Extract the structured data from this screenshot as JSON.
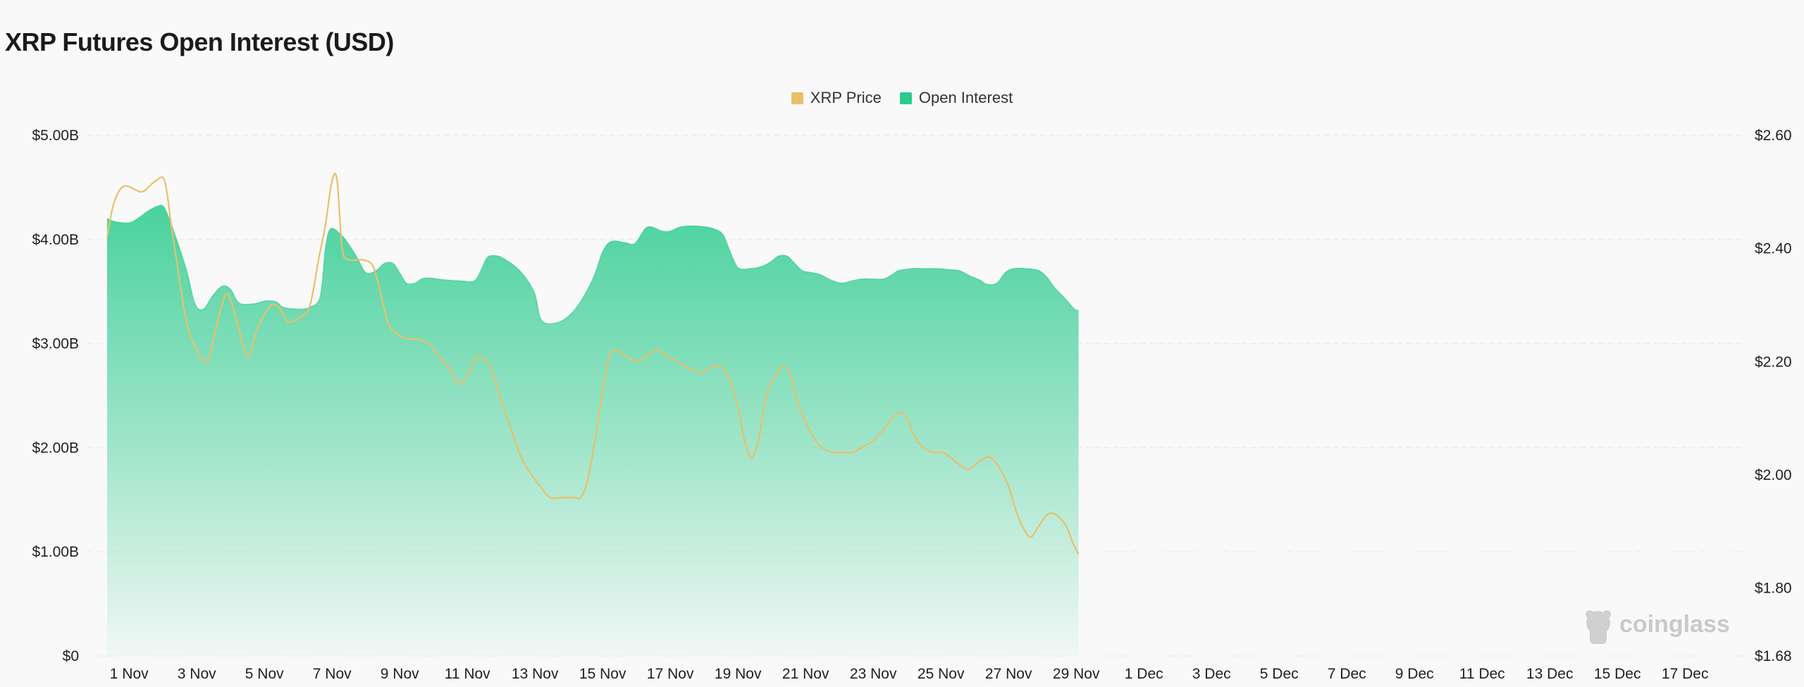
{
  "page": {
    "title": "XRP Futures Open Interest (USD)",
    "watermark": "coinglass"
  },
  "colors": {
    "price_line": "#E8C069",
    "oi_fill": "#2BCB8E",
    "grid": "#E8E8E8",
    "background": "#F9F9F9"
  },
  "chart_data": {
    "type": "area",
    "title": "XRP Futures Open Interest (USD)",
    "legend": {
      "position": "top-center",
      "items": [
        {
          "label": "XRP Price",
          "color": "#E8C069"
        },
        {
          "label": "Open Interest",
          "color": "#2BCB8E"
        }
      ]
    },
    "x_tick_labels": [
      "1 Nov",
      "3 Nov",
      "5 Nov",
      "7 Nov",
      "9 Nov",
      "11 Nov",
      "13 Nov",
      "15 Nov",
      "17 Nov",
      "19 Nov",
      "21 Nov",
      "23 Nov",
      "25 Nov",
      "27 Nov",
      "29 Nov",
      "1 Dec",
      "3 Dec",
      "5 Dec",
      "7 Dec",
      "9 Dec",
      "11 Dec",
      "13 Dec",
      "15 Dec",
      "17 Dec"
    ],
    "y_left": {
      "ylim": [
        0,
        5000000000
      ],
      "tick_labels": [
        "$0",
        "$1.00B",
        "$2.00B",
        "$3.00B",
        "$4.00B",
        "$5.00B"
      ]
    },
    "y_right": {
      "ylim": [
        1.68,
        2.6
      ],
      "tick_labels": [
        "$1.68",
        "$1.80",
        "$2.00",
        "$2.20",
        "$2.40",
        "$2.60"
      ]
    },
    "grid": true,
    "series": [
      {
        "name": "Open Interest",
        "type": "area",
        "axis": "left",
        "values": [
          [
            0.0,
            4.2
          ],
          [
            0.25,
            4.17
          ],
          [
            0.65,
            4.16
          ],
          [
            0.9,
            4.2
          ],
          [
            1.2,
            4.27
          ],
          [
            1.5,
            4.32
          ],
          [
            1.7,
            4.3
          ],
          [
            2.0,
            4.05
          ],
          [
            2.35,
            3.7
          ],
          [
            2.6,
            3.38
          ],
          [
            2.85,
            3.33
          ],
          [
            3.1,
            3.45
          ],
          [
            3.4,
            3.55
          ],
          [
            3.65,
            3.52
          ],
          [
            3.9,
            3.39
          ],
          [
            4.3,
            3.38
          ],
          [
            4.7,
            3.41
          ],
          [
            5.0,
            3.4
          ],
          [
            5.2,
            3.35
          ],
          [
            5.65,
            3.33
          ],
          [
            6.0,
            3.35
          ],
          [
            6.3,
            3.45
          ],
          [
            6.45,
            3.9
          ],
          [
            6.6,
            4.1
          ],
          [
            6.9,
            4.05
          ],
          [
            7.15,
            3.95
          ],
          [
            7.4,
            3.82
          ],
          [
            7.65,
            3.68
          ],
          [
            7.95,
            3.7
          ],
          [
            8.2,
            3.77
          ],
          [
            8.45,
            3.77
          ],
          [
            8.65,
            3.68
          ],
          [
            8.85,
            3.58
          ],
          [
            9.1,
            3.58
          ],
          [
            9.4,
            3.63
          ],
          [
            10.0,
            3.61
          ],
          [
            10.5,
            3.6
          ],
          [
            10.85,
            3.6
          ],
          [
            11.05,
            3.7
          ],
          [
            11.25,
            3.83
          ],
          [
            11.55,
            3.84
          ],
          [
            11.8,
            3.8
          ],
          [
            12.1,
            3.73
          ],
          [
            12.4,
            3.62
          ],
          [
            12.65,
            3.47
          ],
          [
            12.85,
            3.22
          ],
          [
            13.3,
            3.2
          ],
          [
            13.7,
            3.28
          ],
          [
            14.05,
            3.43
          ],
          [
            14.4,
            3.65
          ],
          [
            14.65,
            3.88
          ],
          [
            14.9,
            3.98
          ],
          [
            15.3,
            3.97
          ],
          [
            15.6,
            3.96
          ],
          [
            15.9,
            4.1
          ],
          [
            16.1,
            4.12
          ],
          [
            16.4,
            4.08
          ],
          [
            16.65,
            4.08
          ],
          [
            16.95,
            4.12
          ],
          [
            17.3,
            4.13
          ],
          [
            17.7,
            4.12
          ],
          [
            17.95,
            4.1
          ],
          [
            18.2,
            4.05
          ],
          [
            18.4,
            3.9
          ],
          [
            18.65,
            3.73
          ],
          [
            19.0,
            3.72
          ],
          [
            19.35,
            3.74
          ],
          [
            19.6,
            3.78
          ],
          [
            19.85,
            3.84
          ],
          [
            20.1,
            3.84
          ],
          [
            20.3,
            3.78
          ],
          [
            20.55,
            3.7
          ],
          [
            20.85,
            3.68
          ],
          [
            21.1,
            3.66
          ],
          [
            21.4,
            3.61
          ],
          [
            21.7,
            3.58
          ],
          [
            22.0,
            3.6
          ],
          [
            22.3,
            3.62
          ],
          [
            22.65,
            3.62
          ],
          [
            22.95,
            3.62
          ],
          [
            23.2,
            3.66
          ],
          [
            23.4,
            3.7
          ],
          [
            23.8,
            3.72
          ],
          [
            24.2,
            3.72
          ],
          [
            24.55,
            3.72
          ],
          [
            24.9,
            3.71
          ],
          [
            25.2,
            3.7
          ],
          [
            25.5,
            3.65
          ],
          [
            25.8,
            3.61
          ],
          [
            26.0,
            3.57
          ],
          [
            26.3,
            3.58
          ],
          [
            26.55,
            3.68
          ],
          [
            26.8,
            3.72
          ],
          [
            27.2,
            3.72
          ],
          [
            27.55,
            3.7
          ],
          [
            27.8,
            3.63
          ],
          [
            28.0,
            3.54
          ],
          [
            28.3,
            3.44
          ],
          [
            28.6,
            3.33
          ],
          [
            28.72,
            3.32
          ]
        ]
      },
      {
        "name": "XRP Price",
        "type": "line",
        "axis": "right",
        "values": [
          [
            0.0,
            2.42
          ],
          [
            0.2,
            2.48
          ],
          [
            0.5,
            2.51
          ],
          [
            1.0,
            2.5
          ],
          [
            1.25,
            2.51
          ],
          [
            1.45,
            2.52
          ],
          [
            1.7,
            2.52
          ],
          [
            1.9,
            2.44
          ],
          [
            2.1,
            2.36
          ],
          [
            2.35,
            2.27
          ],
          [
            2.65,
            2.22
          ],
          [
            2.95,
            2.2
          ],
          [
            3.15,
            2.24
          ],
          [
            3.35,
            2.29
          ],
          [
            3.55,
            2.32
          ],
          [
            3.8,
            2.28
          ],
          [
            4.15,
            2.21
          ],
          [
            4.45,
            2.26
          ],
          [
            4.85,
            2.3
          ],
          [
            5.15,
            2.29
          ],
          [
            5.35,
            2.27
          ],
          [
            5.75,
            2.28
          ],
          [
            6.0,
            2.3
          ],
          [
            6.25,
            2.38
          ],
          [
            6.45,
            2.44
          ],
          [
            6.65,
            2.52
          ],
          [
            6.8,
            2.52
          ],
          [
            6.95,
            2.4
          ],
          [
            7.15,
            2.38
          ],
          [
            7.55,
            2.38
          ],
          [
            7.85,
            2.37
          ],
          [
            8.05,
            2.33
          ],
          [
            8.3,
            2.27
          ],
          [
            8.55,
            2.25
          ],
          [
            8.9,
            2.24
          ],
          [
            9.2,
            2.24
          ],
          [
            9.55,
            2.23
          ],
          [
            9.8,
            2.21
          ],
          [
            10.1,
            2.19
          ],
          [
            10.4,
            2.16
          ],
          [
            10.7,
            2.18
          ],
          [
            10.95,
            2.21
          ],
          [
            11.35,
            2.19
          ],
          [
            11.65,
            2.13
          ],
          [
            11.95,
            2.08
          ],
          [
            12.25,
            2.03
          ],
          [
            12.55,
            2.0
          ],
          [
            12.8,
            1.98
          ],
          [
            13.1,
            1.96
          ],
          [
            13.45,
            1.96
          ],
          [
            13.8,
            1.96
          ],
          [
            14.0,
            1.96
          ],
          [
            14.2,
            1.99
          ],
          [
            14.45,
            2.07
          ],
          [
            14.65,
            2.15
          ],
          [
            14.85,
            2.21
          ],
          [
            15.05,
            2.22
          ],
          [
            15.35,
            2.21
          ],
          [
            15.65,
            2.2
          ],
          [
            15.95,
            2.21
          ],
          [
            16.25,
            2.22
          ],
          [
            16.55,
            2.21
          ],
          [
            16.85,
            2.2
          ],
          [
            17.15,
            2.19
          ],
          [
            17.55,
            2.18
          ],
          [
            17.85,
            2.19
          ],
          [
            18.15,
            2.19
          ],
          [
            18.4,
            2.17
          ],
          [
            18.65,
            2.12
          ],
          [
            18.85,
            2.06
          ],
          [
            19.05,
            2.03
          ],
          [
            19.25,
            2.06
          ],
          [
            19.45,
            2.13
          ],
          [
            19.7,
            2.17
          ],
          [
            19.95,
            2.19
          ],
          [
            20.2,
            2.18
          ],
          [
            20.35,
            2.14
          ],
          [
            20.6,
            2.1
          ],
          [
            20.85,
            2.07
          ],
          [
            21.1,
            2.05
          ],
          [
            21.45,
            2.04
          ],
          [
            21.75,
            2.04
          ],
          [
            22.05,
            2.04
          ],
          [
            22.35,
            2.05
          ],
          [
            22.65,
            2.06
          ],
          [
            22.95,
            2.08
          ],
          [
            23.2,
            2.1
          ],
          [
            23.45,
            2.11
          ],
          [
            23.65,
            2.1
          ],
          [
            23.85,
            2.07
          ],
          [
            24.1,
            2.05
          ],
          [
            24.4,
            2.04
          ],
          [
            24.7,
            2.04
          ],
          [
            24.95,
            2.03
          ],
          [
            25.15,
            2.02
          ],
          [
            25.45,
            2.01
          ],
          [
            25.7,
            2.02
          ],
          [
            25.95,
            2.03
          ],
          [
            26.15,
            2.03
          ],
          [
            26.4,
            2.01
          ],
          [
            26.65,
            1.98
          ],
          [
            26.85,
            1.94
          ],
          [
            27.05,
            1.91
          ],
          [
            27.3,
            1.89
          ],
          [
            27.55,
            1.91
          ],
          [
            27.8,
            1.93
          ],
          [
            28.05,
            1.93
          ],
          [
            28.35,
            1.91
          ],
          [
            28.55,
            1.88
          ],
          [
            28.72,
            1.86
          ]
        ]
      }
    ]
  }
}
